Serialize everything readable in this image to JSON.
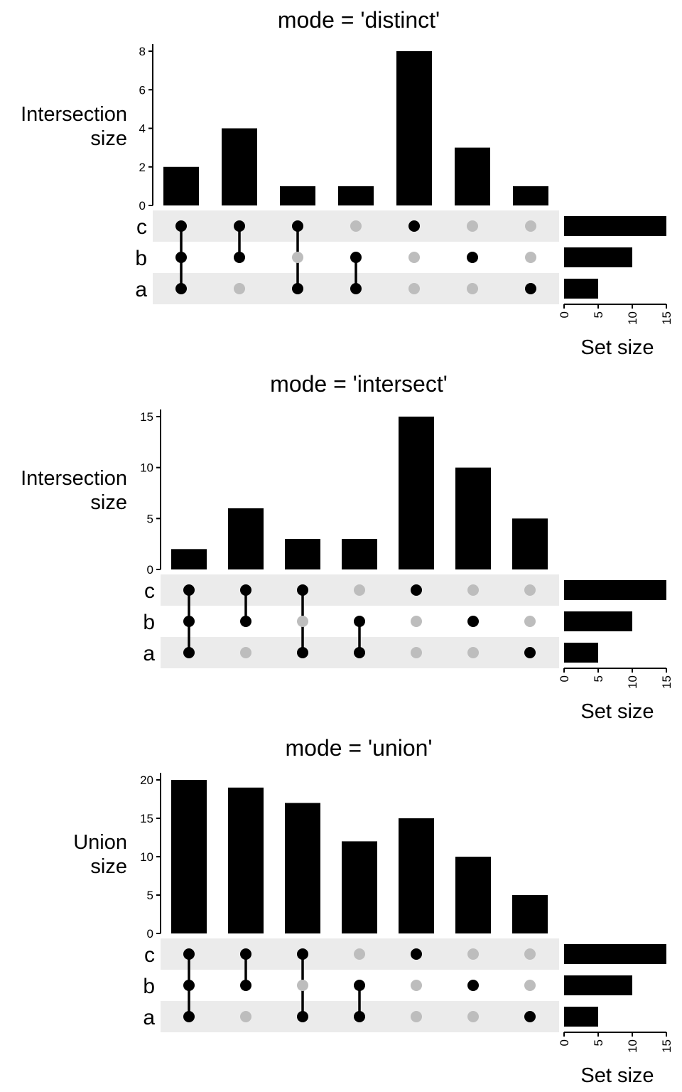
{
  "chart_data": [
    {
      "type": "bar",
      "subtype": "upset",
      "title": "mode = 'distinct'",
      "ylabel": [
        "Intersection",
        "size"
      ],
      "ylim": [
        0,
        8
      ],
      "yticks": [
        0,
        2,
        4,
        6,
        8
      ],
      "values": [
        2,
        4,
        1,
        1,
        8,
        3,
        1
      ],
      "sets": [
        "c",
        "b",
        "a"
      ],
      "matrix": [
        [
          1,
          1,
          1
        ],
        [
          1,
          1,
          0
        ],
        [
          1,
          0,
          1
        ],
        [
          0,
          1,
          1
        ],
        [
          1,
          0,
          0
        ],
        [
          0,
          1,
          0
        ],
        [
          0,
          0,
          1
        ]
      ],
      "set_size": {
        "values": [
          15,
          10,
          5
        ],
        "xticks": [
          0,
          5,
          10,
          15
        ],
        "xlim": [
          0,
          15
        ],
        "xlabel": "Set size"
      }
    },
    {
      "type": "bar",
      "subtype": "upset",
      "title": "mode = 'intersect'",
      "ylabel": [
        "Intersection",
        "size"
      ],
      "ylim": [
        0,
        15
      ],
      "yticks": [
        0,
        5,
        10,
        15
      ],
      "values": [
        2,
        6,
        3,
        3,
        15,
        10,
        5
      ],
      "sets": [
        "c",
        "b",
        "a"
      ],
      "matrix": [
        [
          1,
          1,
          1
        ],
        [
          1,
          1,
          0
        ],
        [
          1,
          0,
          1
        ],
        [
          0,
          1,
          1
        ],
        [
          1,
          0,
          0
        ],
        [
          0,
          1,
          0
        ],
        [
          0,
          0,
          1
        ]
      ],
      "set_size": {
        "values": [
          15,
          10,
          5
        ],
        "xticks": [
          0,
          5,
          10,
          15
        ],
        "xlim": [
          0,
          15
        ],
        "xlabel": "Set size"
      }
    },
    {
      "type": "bar",
      "subtype": "upset",
      "title": "mode = 'union'",
      "ylabel": [
        "Union",
        "size"
      ],
      "ylim": [
        0,
        20
      ],
      "yticks": [
        0,
        5,
        10,
        15,
        20
      ],
      "values": [
        20,
        19,
        17,
        12,
        15,
        10,
        5
      ],
      "sets": [
        "c",
        "b",
        "a"
      ],
      "matrix": [
        [
          1,
          1,
          1
        ],
        [
          1,
          1,
          0
        ],
        [
          1,
          0,
          1
        ],
        [
          0,
          1,
          1
        ],
        [
          1,
          0,
          0
        ],
        [
          0,
          1,
          0
        ],
        [
          0,
          0,
          1
        ]
      ],
      "set_size": {
        "values": [
          15,
          10,
          5
        ],
        "xticks": [
          0,
          5,
          10,
          15
        ],
        "xlim": [
          0,
          15
        ],
        "xlabel": "Set size"
      }
    }
  ],
  "colors": {
    "bar": "#000000",
    "dot_active": "#000000",
    "dot_inactive": "#bdbdbd",
    "row_band": "#ebebeb"
  }
}
